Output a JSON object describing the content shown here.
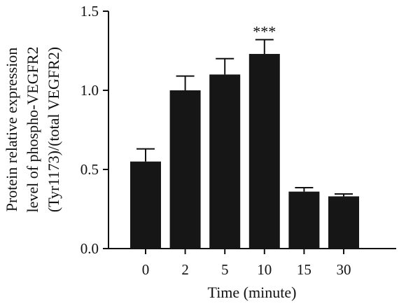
{
  "chart_data": {
    "type": "bar",
    "categories": [
      "0",
      "2",
      "5",
      "10",
      "15",
      "30"
    ],
    "values": [
      0.55,
      1.0,
      1.1,
      1.23,
      0.36,
      0.33
    ],
    "errors": [
      0.08,
      0.09,
      0.1,
      0.09,
      0.025,
      0.015
    ],
    "annotations": [
      {
        "category": "10",
        "text": "***"
      }
    ],
    "title": "",
    "xlabel": "Time (minute)",
    "ylabel_lines": [
      "Protein relative expression",
      "level of phospho-VEGFR2",
      "(Tyr1173)/(total VEGFR2)"
    ],
    "ylim": [
      0,
      1.5
    ],
    "yticks": [
      0.0,
      0.5,
      1.0,
      1.5
    ],
    "ytick_labels": [
      "0.0",
      "0.5",
      "1.0",
      "1.5"
    ],
    "grid": false,
    "legend": "none",
    "bar_color": "#161616"
  }
}
